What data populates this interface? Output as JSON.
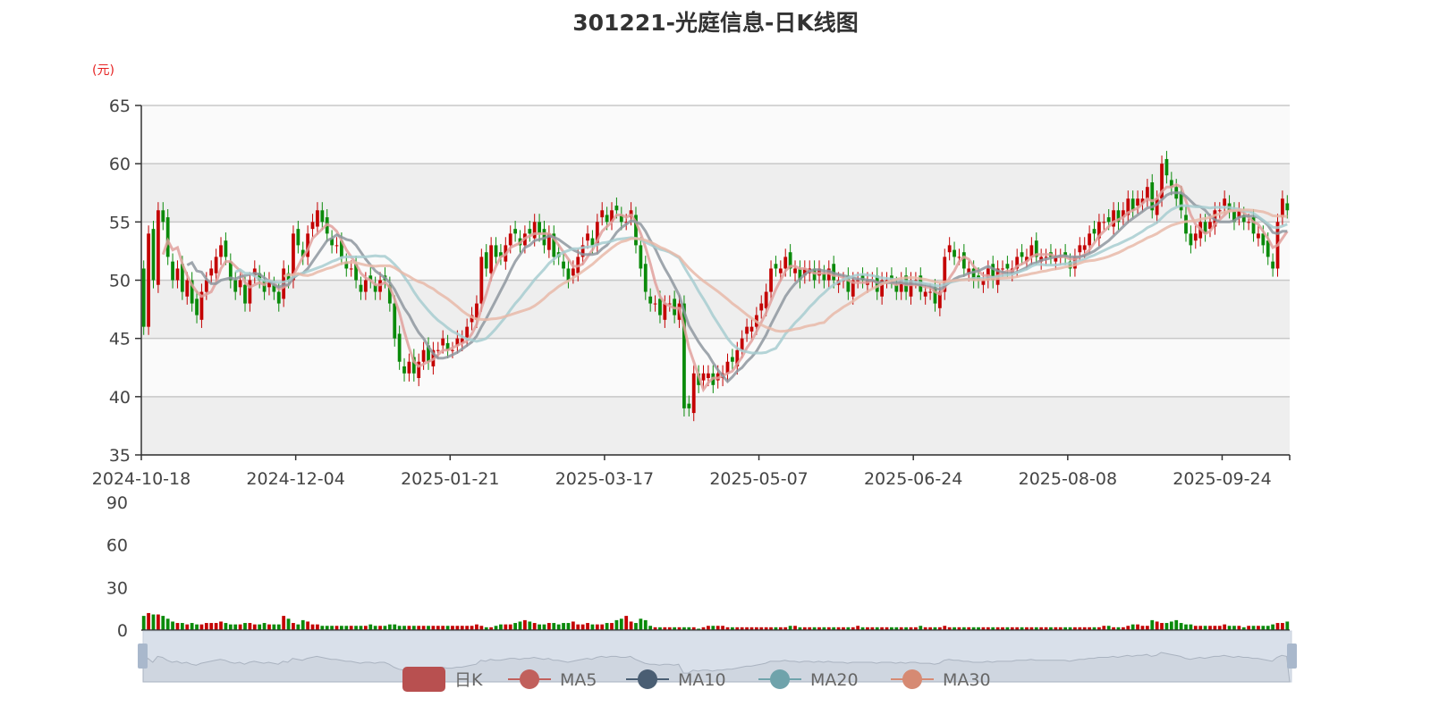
{
  "chart_data": {
    "type": "candlestick",
    "title": "301221-光庭信息-日K线图",
    "y_unit": "(元)",
    "ylim": [
      35,
      65
    ],
    "yticks": [
      "35",
      "40",
      "45",
      "50",
      "55",
      "60",
      "65"
    ],
    "volume_ylim": [
      0,
      90
    ],
    "volume_yticks": [
      "0",
      "30",
      "60",
      "90"
    ],
    "xtick_labels": [
      "2024-10-18",
      "2024-12-04",
      "2025-01-21",
      "2025-03-17",
      "2025-05-07",
      "2025-06-24",
      "2025-08-08",
      "2025-09-24"
    ],
    "legend": [
      "日K",
      "MA5",
      "MA10",
      "MA20",
      "MA30"
    ],
    "legend_placement": "bottom",
    "colors": {
      "up": "#c40000",
      "down": "#0a8a0a",
      "MA5": "#e0a09c",
      "MA10": "#8e979f",
      "MA20": "#a7ccd0",
      "MA30": "#e8b9a8",
      "leg_k": "#b85050",
      "leg_MA5": "#c1605c",
      "leg_MA10": "#4a5e73",
      "leg_MA20": "#6fa3ab",
      "leg_MA30": "#d68a73"
    },
    "close": [
      46,
      54,
      50,
      56,
      55,
      52,
      50,
      51,
      49,
      50,
      48,
      47,
      49,
      50,
      51,
      52,
      53,
      52,
      50,
      49,
      50,
      48,
      50,
      51,
      50,
      49,
      50,
      49,
      48,
      51,
      50,
      54,
      53,
      52,
      54,
      55,
      56,
      55,
      54,
      53,
      53,
      52,
      51,
      51,
      50,
      49,
      50,
      50,
      49,
      50,
      50,
      48,
      45,
      43,
      42,
      43,
      42,
      43,
      44,
      43,
      44,
      44,
      45,
      44,
      44,
      45,
      45,
      46,
      47,
      48,
      52,
      51,
      53,
      52,
      52,
      53,
      54,
      54,
      53,
      54,
      54,
      55,
      54,
      53,
      54,
      52,
      52,
      51,
      50,
      51,
      52,
      53,
      54,
      53,
      55,
      56,
      55,
      56,
      56,
      55,
      55,
      56,
      53,
      51,
      49,
      48,
      48,
      47,
      48,
      48,
      47,
      48,
      39,
      39,
      42,
      41,
      42,
      42,
      41,
      42,
      42,
      43,
      43,
      44,
      45,
      46,
      46,
      47,
      48,
      49,
      51,
      51,
      51,
      52,
      51,
      51,
      50,
      51,
      51,
      50,
      51,
      50,
      51,
      50,
      50,
      50,
      49,
      50,
      50,
      50,
      50,
      50,
      49,
      50,
      50,
      50,
      49,
      50,
      49,
      50,
      50,
      49,
      49,
      49,
      48,
      49,
      52,
      53,
      52,
      52,
      51,
      51,
      50,
      50,
      50,
      51,
      50,
      51,
      51,
      51,
      51,
      52,
      52,
      52,
      53,
      52,
      52,
      52,
      52,
      52,
      52,
      52,
      51,
      52,
      53,
      53,
      54,
      54,
      55,
      55,
      55,
      56,
      55,
      56,
      57,
      56,
      57,
      57,
      58,
      56,
      57,
      60,
      59,
      58,
      57,
      56,
      54,
      53,
      54,
      55,
      54,
      55,
      56,
      56,
      57,
      56,
      55,
      56,
      55,
      55,
      54,
      54,
      53,
      52,
      51,
      55,
      57,
      56
    ],
    "volume": [
      10,
      12,
      11,
      11,
      10,
      8,
      6,
      5,
      5,
      4,
      5,
      4,
      4,
      5,
      5,
      5,
      6,
      5,
      4,
      4,
      4,
      5,
      5,
      4,
      4,
      5,
      4,
      4,
      4,
      10,
      8,
      5,
      4,
      7,
      6,
      4,
      4,
      3,
      3,
      3,
      3,
      3,
      3,
      3,
      3,
      3,
      3,
      4,
      3,
      3,
      3,
      4,
      4,
      3,
      3,
      3,
      3,
      3,
      3,
      3,
      3,
      3,
      3,
      3,
      3,
      3,
      3,
      3,
      3,
      4,
      3,
      2,
      2,
      3,
      4,
      4,
      4,
      5,
      6,
      7,
      6,
      5,
      4,
      4,
      5,
      5,
      4,
      5,
      5,
      6,
      4,
      4,
      5,
      4,
      4,
      4,
      5,
      5,
      7,
      8,
      10,
      6,
      5,
      8,
      7,
      3,
      2,
      2,
      2,
      2,
      2,
      2,
      2,
      2,
      2,
      1,
      2,
      3,
      3,
      3,
      3,
      2,
      2,
      2,
      2,
      2,
      2,
      2,
      2,
      2,
      2,
      2,
      2,
      2,
      3,
      3,
      2,
      2,
      2,
      2,
      2,
      2,
      2,
      2,
      2,
      2,
      2,
      2,
      3,
      2,
      2,
      2,
      2,
      2,
      2,
      2,
      2,
      2,
      2,
      2,
      2,
      3,
      2,
      2,
      2,
      2,
      3,
      2,
      2,
      2,
      2,
      2,
      2,
      2,
      2,
      2,
      2,
      2,
      2,
      2,
      2,
      2,
      2,
      2,
      2,
      2,
      2,
      2,
      2,
      2,
      2,
      2,
      2,
      2,
      2,
      2,
      2,
      2,
      2,
      3,
      3,
      2,
      2,
      2,
      3,
      4,
      4,
      3,
      3,
      7,
      6,
      5,
      5,
      6,
      7,
      5,
      4,
      4,
      3,
      3,
      3,
      3,
      3,
      3,
      4,
      3,
      3,
      3,
      2,
      3,
      3,
      3,
      3,
      3,
      4,
      5,
      5,
      6
    ]
  }
}
